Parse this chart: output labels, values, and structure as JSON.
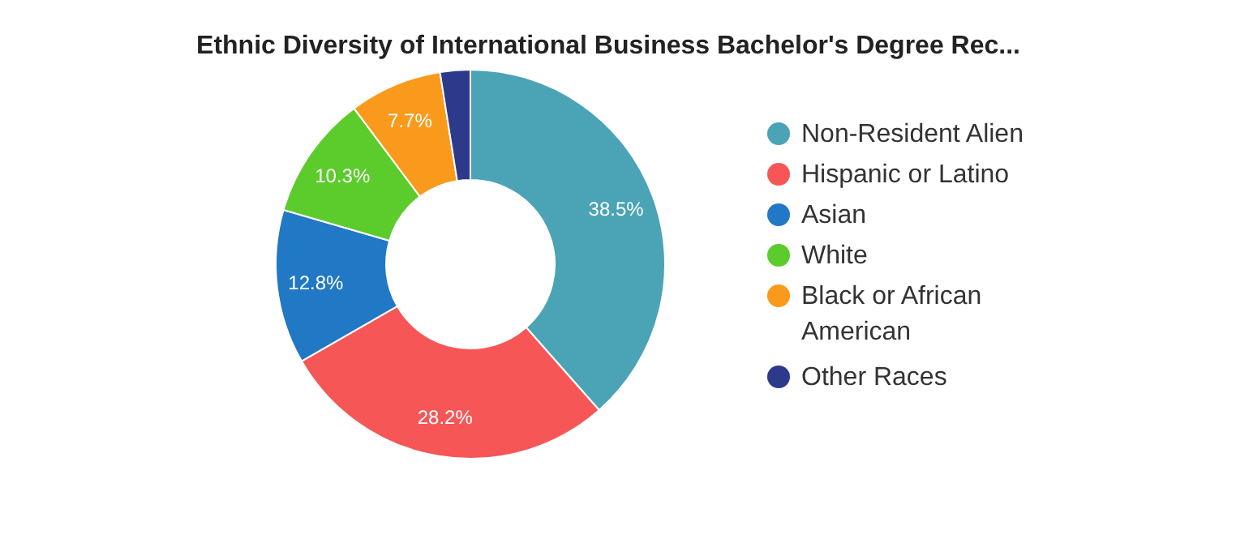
{
  "chart_data": {
    "type": "donut",
    "title": "Ethnic Diversity of International Business Bachelor's Degree Rec...",
    "categories": [
      "Non-Resident Alien",
      "Hispanic or Latino",
      "Asian",
      "White",
      "Black or African American",
      "Other Races"
    ],
    "values": [
      38.5,
      28.2,
      12.8,
      10.3,
      7.7,
      2.5
    ],
    "colors": [
      "#4ba3b6",
      "#f75656",
      "#2178c4",
      "#5ccb2c",
      "#f99a1c",
      "#2d3a8c"
    ],
    "value_labels": [
      "38.5%",
      "28.2%",
      "12.8%",
      "10.3%",
      "7.7%",
      null
    ],
    "legend": "right"
  }
}
